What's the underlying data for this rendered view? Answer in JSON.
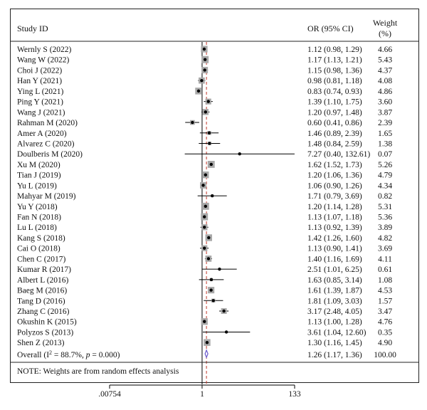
{
  "chart_data": {
    "type": "forest",
    "columns": {
      "study": "Study ID",
      "or": "OR (95% CI)",
      "weight_line1": "Weight",
      "weight_line2": "(%)"
    },
    "studies": [
      {
        "label": "Wernly S (2022)",
        "or": 1.12,
        "lo": 0.98,
        "hi": 1.29,
        "ci_text": "1.12 (0.98, 1.29)",
        "weight": 4.66,
        "weight_text": "4.66"
      },
      {
        "label": "Wang W (2022)",
        "or": 1.17,
        "lo": 1.13,
        "hi": 1.21,
        "ci_text": "1.17 (1.13, 1.21)",
        "weight": 5.43,
        "weight_text": "5.43"
      },
      {
        "label": "Choi J (2022)",
        "or": 1.15,
        "lo": 0.98,
        "hi": 1.36,
        "ci_text": "1.15 (0.98, 1.36)",
        "weight": 4.37,
        "weight_text": "4.37"
      },
      {
        "label": "Han Y (2021)",
        "or": 0.98,
        "lo": 0.81,
        "hi": 1.18,
        "ci_text": "0.98 (0.81, 1.18)",
        "weight": 4.08,
        "weight_text": "4.08"
      },
      {
        "label": "Ying L (2021)",
        "or": 0.83,
        "lo": 0.74,
        "hi": 0.93,
        "ci_text": "0.83 (0.74, 0.93)",
        "weight": 4.86,
        "weight_text": "4.86"
      },
      {
        "label": "Ping Y (2021)",
        "or": 1.39,
        "lo": 1.1,
        "hi": 1.75,
        "ci_text": "1.39 (1.10, 1.75)",
        "weight": 3.6,
        "weight_text": "3.60"
      },
      {
        "label": "Wang J (2021)",
        "or": 1.2,
        "lo": 0.97,
        "hi": 1.48,
        "ci_text": "1.20 (0.97, 1.48)",
        "weight": 3.87,
        "weight_text": "3.87"
      },
      {
        "label": "Rahman M (2020)",
        "or": 0.6,
        "lo": 0.41,
        "hi": 0.86,
        "ci_text": "0.60 (0.41, 0.86)",
        "weight": 2.39,
        "weight_text": "2.39"
      },
      {
        "label": "Amer A (2020)",
        "or": 1.46,
        "lo": 0.89,
        "hi": 2.39,
        "ci_text": "1.46 (0.89, 2.39)",
        "weight": 1.65,
        "weight_text": "1.65"
      },
      {
        "label": "Alvarez C (2020)",
        "or": 1.48,
        "lo": 0.84,
        "hi": 2.59,
        "ci_text": "1.48 (0.84, 2.59)",
        "weight": 1.38,
        "weight_text": "1.38"
      },
      {
        "label": "Doulberis M (2020)",
        "or": 7.27,
        "lo": 0.4,
        "hi": 132.61,
        "ci_text": "7.27 (0.40, 132.61)",
        "weight": 0.07,
        "weight_text": "0.07"
      },
      {
        "label": "Xu M (2020)",
        "or": 1.62,
        "lo": 1.52,
        "hi": 1.73,
        "ci_text": "1.62 (1.52, 1.73)",
        "weight": 5.26,
        "weight_text": "5.26"
      },
      {
        "label": "Tian J (2019)",
        "or": 1.2,
        "lo": 1.06,
        "hi": 1.36,
        "ci_text": "1.20 (1.06, 1.36)",
        "weight": 4.79,
        "weight_text": "4.79"
      },
      {
        "label": "Yu L (2019)",
        "or": 1.06,
        "lo": 0.9,
        "hi": 1.26,
        "ci_text": "1.06 (0.90, 1.26)",
        "weight": 4.34,
        "weight_text": "4.34"
      },
      {
        "label": "Mahyar M (2019)",
        "or": 1.71,
        "lo": 0.79,
        "hi": 3.69,
        "ci_text": "1.71 (0.79, 3.69)",
        "weight": 0.82,
        "weight_text": "0.82"
      },
      {
        "label": "Yu Y (2018)",
        "or": 1.2,
        "lo": 1.14,
        "hi": 1.28,
        "ci_text": "1.20 (1.14, 1.28)",
        "weight": 5.31,
        "weight_text": "5.31"
      },
      {
        "label": "Fan N (2018)",
        "or": 1.13,
        "lo": 1.07,
        "hi": 1.18,
        "ci_text": "1.13 (1.07, 1.18)",
        "weight": 5.36,
        "weight_text": "5.36"
      },
      {
        "label": "Lu L (2018)",
        "or": 1.13,
        "lo": 0.92,
        "hi": 1.39,
        "ci_text": "1.13 (0.92, 1.39)",
        "weight": 3.89,
        "weight_text": "3.89"
      },
      {
        "label": "Kang S (2018)",
        "or": 1.42,
        "lo": 1.26,
        "hi": 1.6,
        "ci_text": "1.42 (1.26, 1.60)",
        "weight": 4.82,
        "weight_text": "4.82"
      },
      {
        "label": "Cai O (2018)",
        "or": 1.13,
        "lo": 0.9,
        "hi": 1.41,
        "ci_text": "1.13 (0.90, 1.41)",
        "weight": 3.69,
        "weight_text": "3.69"
      },
      {
        "label": "Chen C (2017)",
        "or": 1.4,
        "lo": 1.16,
        "hi": 1.69,
        "ci_text": "1.40 (1.16, 1.69)",
        "weight": 4.11,
        "weight_text": "4.11"
      },
      {
        "label": "Kumar R (2017)",
        "or": 2.51,
        "lo": 1.01,
        "hi": 6.25,
        "ci_text": "2.51 (1.01, 6.25)",
        "weight": 0.61,
        "weight_text": "0.61"
      },
      {
        "label": "Albert L (2016)",
        "or": 1.63,
        "lo": 0.85,
        "hi": 3.14,
        "ci_text": "1.63 (0.85, 3.14)",
        "weight": 1.08,
        "weight_text": "1.08"
      },
      {
        "label": "Baeg M (2016)",
        "or": 1.61,
        "lo": 1.39,
        "hi": 1.87,
        "ci_text": "1.61 (1.39, 1.87)",
        "weight": 4.53,
        "weight_text": "4.53"
      },
      {
        "label": "Tang D (2016)",
        "or": 1.81,
        "lo": 1.09,
        "hi": 3.03,
        "ci_text": "1.81 (1.09, 3.03)",
        "weight": 1.57,
        "weight_text": "1.57"
      },
      {
        "label": "Zhang C (2016)",
        "or": 3.17,
        "lo": 2.48,
        "hi": 4.05,
        "ci_text": "3.17 (2.48, 4.05)",
        "weight": 3.47,
        "weight_text": "3.47"
      },
      {
        "label": "Okushin K (2015)",
        "or": 1.13,
        "lo": 1.0,
        "hi": 1.28,
        "ci_text": "1.13 (1.00, 1.28)",
        "weight": 4.76,
        "weight_text": "4.76"
      },
      {
        "label": "Polyzos S (2013)",
        "or": 3.61,
        "lo": 1.04,
        "hi": 12.6,
        "ci_text": "3.61 (1.04, 12.60)",
        "weight": 0.35,
        "weight_text": "0.35"
      },
      {
        "label": "Shen Z (2013)",
        "or": 1.3,
        "lo": 1.16,
        "hi": 1.45,
        "ci_text": "1.30 (1.16, 1.45)",
        "weight": 4.9,
        "weight_text": "4.90"
      }
    ],
    "overall": {
      "label_prefix": "Overall (I",
      "label_sup": "2",
      "label_mid": " = 88.7%, ",
      "label_p": "p",
      "label_suffix": " = 0.000)",
      "or": 1.26,
      "lo": 1.17,
      "hi": 1.36,
      "ci_text": "1.26 (1.17, 1.36)",
      "weight": 100.0,
      "weight_text": "100.00"
    },
    "note": "NOTE: Weights are from random effects analysis",
    "x_axis": {
      "scale": "log",
      "min": 0.00754,
      "max": 133,
      "ticks": [
        {
          "value": 0.00754,
          "label": ".00754"
        },
        {
          "value": 1,
          "label": "1"
        },
        {
          "value": 133,
          "label": "133"
        }
      ]
    },
    "null_line": 1,
    "pooled_line": 1.26,
    "colors": {
      "box": "#a9a9a9",
      "point": "#000000",
      "pooled_line": "#c0392b",
      "diamond": "#6a5acd",
      "text": "#111111"
    }
  }
}
